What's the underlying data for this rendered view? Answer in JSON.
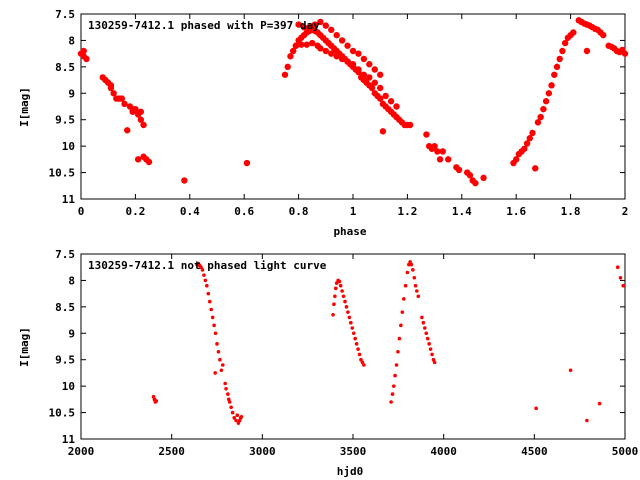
{
  "colors": {
    "points": "#ff0000",
    "frame": "#000000",
    "background": "#ffffff"
  },
  "chart_data": [
    {
      "type": "scatter",
      "title": "130259-7412.1 phased with P=397 day",
      "xlabel": "phase",
      "ylabel": "I[mag]",
      "xlim": [
        0,
        2
      ],
      "ylim": [
        7.5,
        11
      ],
      "y_inverted": true,
      "xticks": [
        0,
        0.2,
        0.4,
        0.6,
        0.8,
        1,
        1.2,
        1.4,
        1.6,
        1.8,
        2
      ],
      "xtick_labels": [
        "0",
        "0.2",
        "0.4",
        "0.6",
        "0.8",
        "1",
        "1.2",
        "1.4",
        "1.6",
        "1.8",
        "2"
      ],
      "yticks": [
        7.5,
        8,
        8.5,
        9,
        9.5,
        10,
        10.5,
        11
      ],
      "ytick_labels": [
        "7.5",
        "8",
        "8.5",
        "9",
        "9.5",
        "10",
        "10.5",
        "11"
      ],
      "grid": false,
      "marker": "filled-circle-large",
      "series": [
        {
          "x": [
            0.0,
            0.01,
            0.01,
            0.02,
            0.08,
            0.09,
            0.1,
            0.11,
            0.11,
            0.12,
            0.13,
            0.14,
            0.15,
            0.16,
            0.17,
            0.18,
            0.19,
            0.19,
            0.2,
            0.21,
            0.21,
            0.22,
            0.22,
            0.23,
            0.23,
            0.24,
            0.25,
            0.38,
            0.61,
            0.75,
            0.76,
            0.77,
            0.78,
            0.79,
            0.8,
            0.81,
            0.82,
            0.83,
            0.84,
            0.85,
            0.86,
            0.87,
            0.88,
            0.89,
            0.9,
            0.91,
            0.92,
            0.93,
            0.94,
            0.95,
            0.96,
            0.97,
            0.98,
            0.99,
            1.0,
            1.01,
            1.02,
            1.03,
            1.04,
            1.05,
            1.06,
            1.07,
            1.08,
            1.09,
            1.1,
            1.11,
            1.12,
            1.13,
            1.14,
            1.15,
            1.16,
            1.17,
            1.18,
            1.19,
            1.2,
            1.21,
            0.79,
            0.81,
            0.83,
            0.85,
            0.87,
            0.88,
            0.9,
            0.92,
            0.94,
            0.96,
            0.98,
            1.0,
            1.02,
            1.04,
            1.06,
            1.08,
            1.1,
            1.12,
            1.14,
            1.16,
            0.8,
            0.82,
            0.84,
            0.86,
            0.88,
            0.9,
            0.92,
            0.94,
            0.96,
            0.98,
            1.0,
            1.02,
            1.04,
            1.06,
            1.08,
            1.1,
            1.11,
            1.27,
            1.28,
            1.29,
            1.3,
            1.31,
            1.32,
            1.33,
            1.35,
            1.38,
            1.39,
            1.42,
            1.43,
            1.44,
            1.45,
            1.48,
            1.59,
            1.6,
            1.61,
            1.62,
            1.63,
            1.64,
            1.65,
            1.66,
            1.67,
            1.68,
            1.69,
            1.7,
            1.71,
            1.72,
            1.73,
            1.74,
            1.75,
            1.76,
            1.77,
            1.78,
            1.79,
            1.8,
            1.81,
            1.83,
            1.84,
            1.85,
            1.86,
            1.87,
            1.88,
            1.89,
            1.9,
            1.91,
            1.92,
            1.86,
            1.94,
            1.95,
            1.96,
            1.97,
            1.98,
            1.99,
            2.0
          ],
          "y": [
            8.25,
            8.3,
            8.2,
            8.35,
            8.7,
            8.75,
            8.8,
            8.85,
            8.9,
            9.0,
            9.1,
            9.1,
            9.1,
            9.2,
            9.7,
            9.25,
            9.3,
            9.35,
            9.3,
            9.4,
            10.25,
            9.35,
            9.5,
            9.6,
            10.2,
            10.25,
            10.3,
            10.65,
            10.32,
            8.65,
            8.5,
            8.3,
            8.2,
            8.1,
            8.0,
            7.95,
            7.9,
            7.85,
            7.82,
            7.8,
            7.82,
            7.85,
            7.9,
            7.95,
            8.0,
            8.05,
            8.1,
            8.15,
            8.2,
            8.25,
            8.3,
            8.35,
            8.4,
            8.45,
            8.5,
            8.55,
            8.6,
            8.7,
            8.75,
            8.8,
            8.85,
            8.9,
            9.0,
            9.05,
            9.1,
            9.2,
            9.25,
            9.3,
            9.35,
            9.4,
            9.45,
            9.5,
            9.55,
            9.6,
            9.6,
            9.6,
            8.1,
            8.08,
            8.08,
            8.05,
            8.1,
            8.15,
            8.2,
            8.25,
            8.3,
            8.35,
            8.4,
            8.45,
            8.55,
            8.65,
            8.7,
            8.8,
            8.9,
            9.05,
            9.15,
            9.25,
            7.7,
            7.75,
            7.75,
            7.7,
            7.65,
            7.72,
            7.8,
            7.9,
            8.0,
            8.1,
            8.2,
            8.25,
            8.35,
            8.45,
            8.55,
            8.65,
            9.72,
            9.78,
            10.0,
            10.05,
            10.0,
            10.1,
            10.25,
            10.1,
            10.25,
            10.4,
            10.45,
            10.5,
            10.55,
            10.65,
            10.7,
            10.6,
            10.32,
            10.25,
            10.15,
            10.1,
            10.05,
            9.95,
            9.85,
            9.75,
            10.42,
            9.55,
            9.45,
            9.3,
            9.15,
            9.0,
            8.85,
            8.65,
            8.5,
            8.35,
            8.2,
            8.05,
            7.95,
            7.9,
            7.85,
            7.62,
            7.65,
            7.68,
            7.7,
            7.72,
            7.75,
            7.78,
            7.8,
            7.85,
            7.9,
            8.2,
            8.1,
            8.12,
            8.15,
            8.2,
            8.22,
            8.18,
            8.25
          ]
        }
      ]
    },
    {
      "type": "scatter",
      "title": "130259-7412.1 not phased light curve",
      "xlabel": "hjd0",
      "ylabel": "I[mag]",
      "xlim": [
        2000,
        5000
      ],
      "ylim": [
        7.5,
        11
      ],
      "y_inverted": true,
      "xticks": [
        2000,
        2500,
        3000,
        3500,
        4000,
        4500,
        5000
      ],
      "xtick_labels": [
        "2000",
        "2500",
        "3000",
        "3500",
        "4000",
        "4500",
        "5000"
      ],
      "yticks": [
        7.5,
        8,
        8.5,
        9,
        9.5,
        10,
        10.5,
        11
      ],
      "ytick_labels": [
        "7.5",
        "8",
        "8.5",
        "9",
        "9.5",
        "10",
        "10.5",
        "11"
      ],
      "grid": false,
      "marker": "filled-circle-small",
      "series": [
        {
          "x": [
            2400,
            2405,
            2410,
            2415,
            2640,
            2648,
            2655,
            2662,
            2670,
            2678,
            2686,
            2694,
            2702,
            2710,
            2718,
            2726,
            2734,
            2742,
            2750,
            2758,
            2766,
            2774,
            2782,
            2740,
            2795,
            2800,
            2810,
            2815,
            2820,
            2828,
            2836,
            2845,
            2855,
            2862,
            2868,
            2875,
            2880,
            2885,
            3390,
            3395,
            3400,
            3405,
            3410,
            3418,
            3425,
            3432,
            3440,
            3448,
            3456,
            3464,
            3472,
            3480,
            3488,
            3496,
            3504,
            3512,
            3520,
            3528,
            3536,
            3544,
            3552,
            3560,
            3710,
            3718,
            3725,
            3732,
            3740,
            3748,
            3756,
            3764,
            3772,
            3780,
            3790,
            3800,
            3808,
            3815,
            3822,
            3830,
            3838,
            3845,
            3852,
            3860,
            3880,
            3888,
            3896,
            3904,
            3912,
            3920,
            3928,
            3936,
            3944,
            3950,
            4510,
            4700,
            4790,
            4860,
            4960,
            4975,
            4990
          ],
          "y": [
            10.2,
            10.25,
            10.3,
            10.28,
            7.7,
            7.68,
            7.72,
            7.75,
            7.8,
            7.9,
            8.0,
            8.1,
            8.25,
            8.4,
            8.55,
            8.7,
            8.85,
            9.0,
            9.2,
            9.35,
            9.5,
            9.7,
            9.6,
            9.75,
            9.95,
            10.05,
            10.15,
            10.25,
            10.3,
            10.4,
            10.5,
            10.6,
            10.65,
            10.55,
            10.7,
            10.65,
            10.6,
            10.58,
            8.65,
            8.45,
            8.3,
            8.15,
            8.05,
            8.0,
            8.02,
            8.1,
            8.2,
            8.3,
            8.4,
            8.5,
            8.6,
            8.7,
            8.8,
            8.9,
            9.0,
            9.1,
            9.2,
            9.3,
            9.4,
            9.5,
            9.55,
            9.6,
            10.3,
            10.15,
            10.0,
            9.8,
            9.6,
            9.35,
            9.1,
            8.85,
            8.6,
            8.35,
            8.1,
            7.85,
            7.7,
            7.65,
            7.7,
            7.8,
            7.95,
            8.1,
            8.2,
            8.3,
            8.7,
            8.8,
            8.9,
            9.0,
            9.1,
            9.2,
            9.3,
            9.4,
            9.5,
            9.55,
            10.42,
            9.7,
            10.65,
            10.33,
            7.75,
            7.95,
            8.1
          ]
        }
      ]
    }
  ]
}
